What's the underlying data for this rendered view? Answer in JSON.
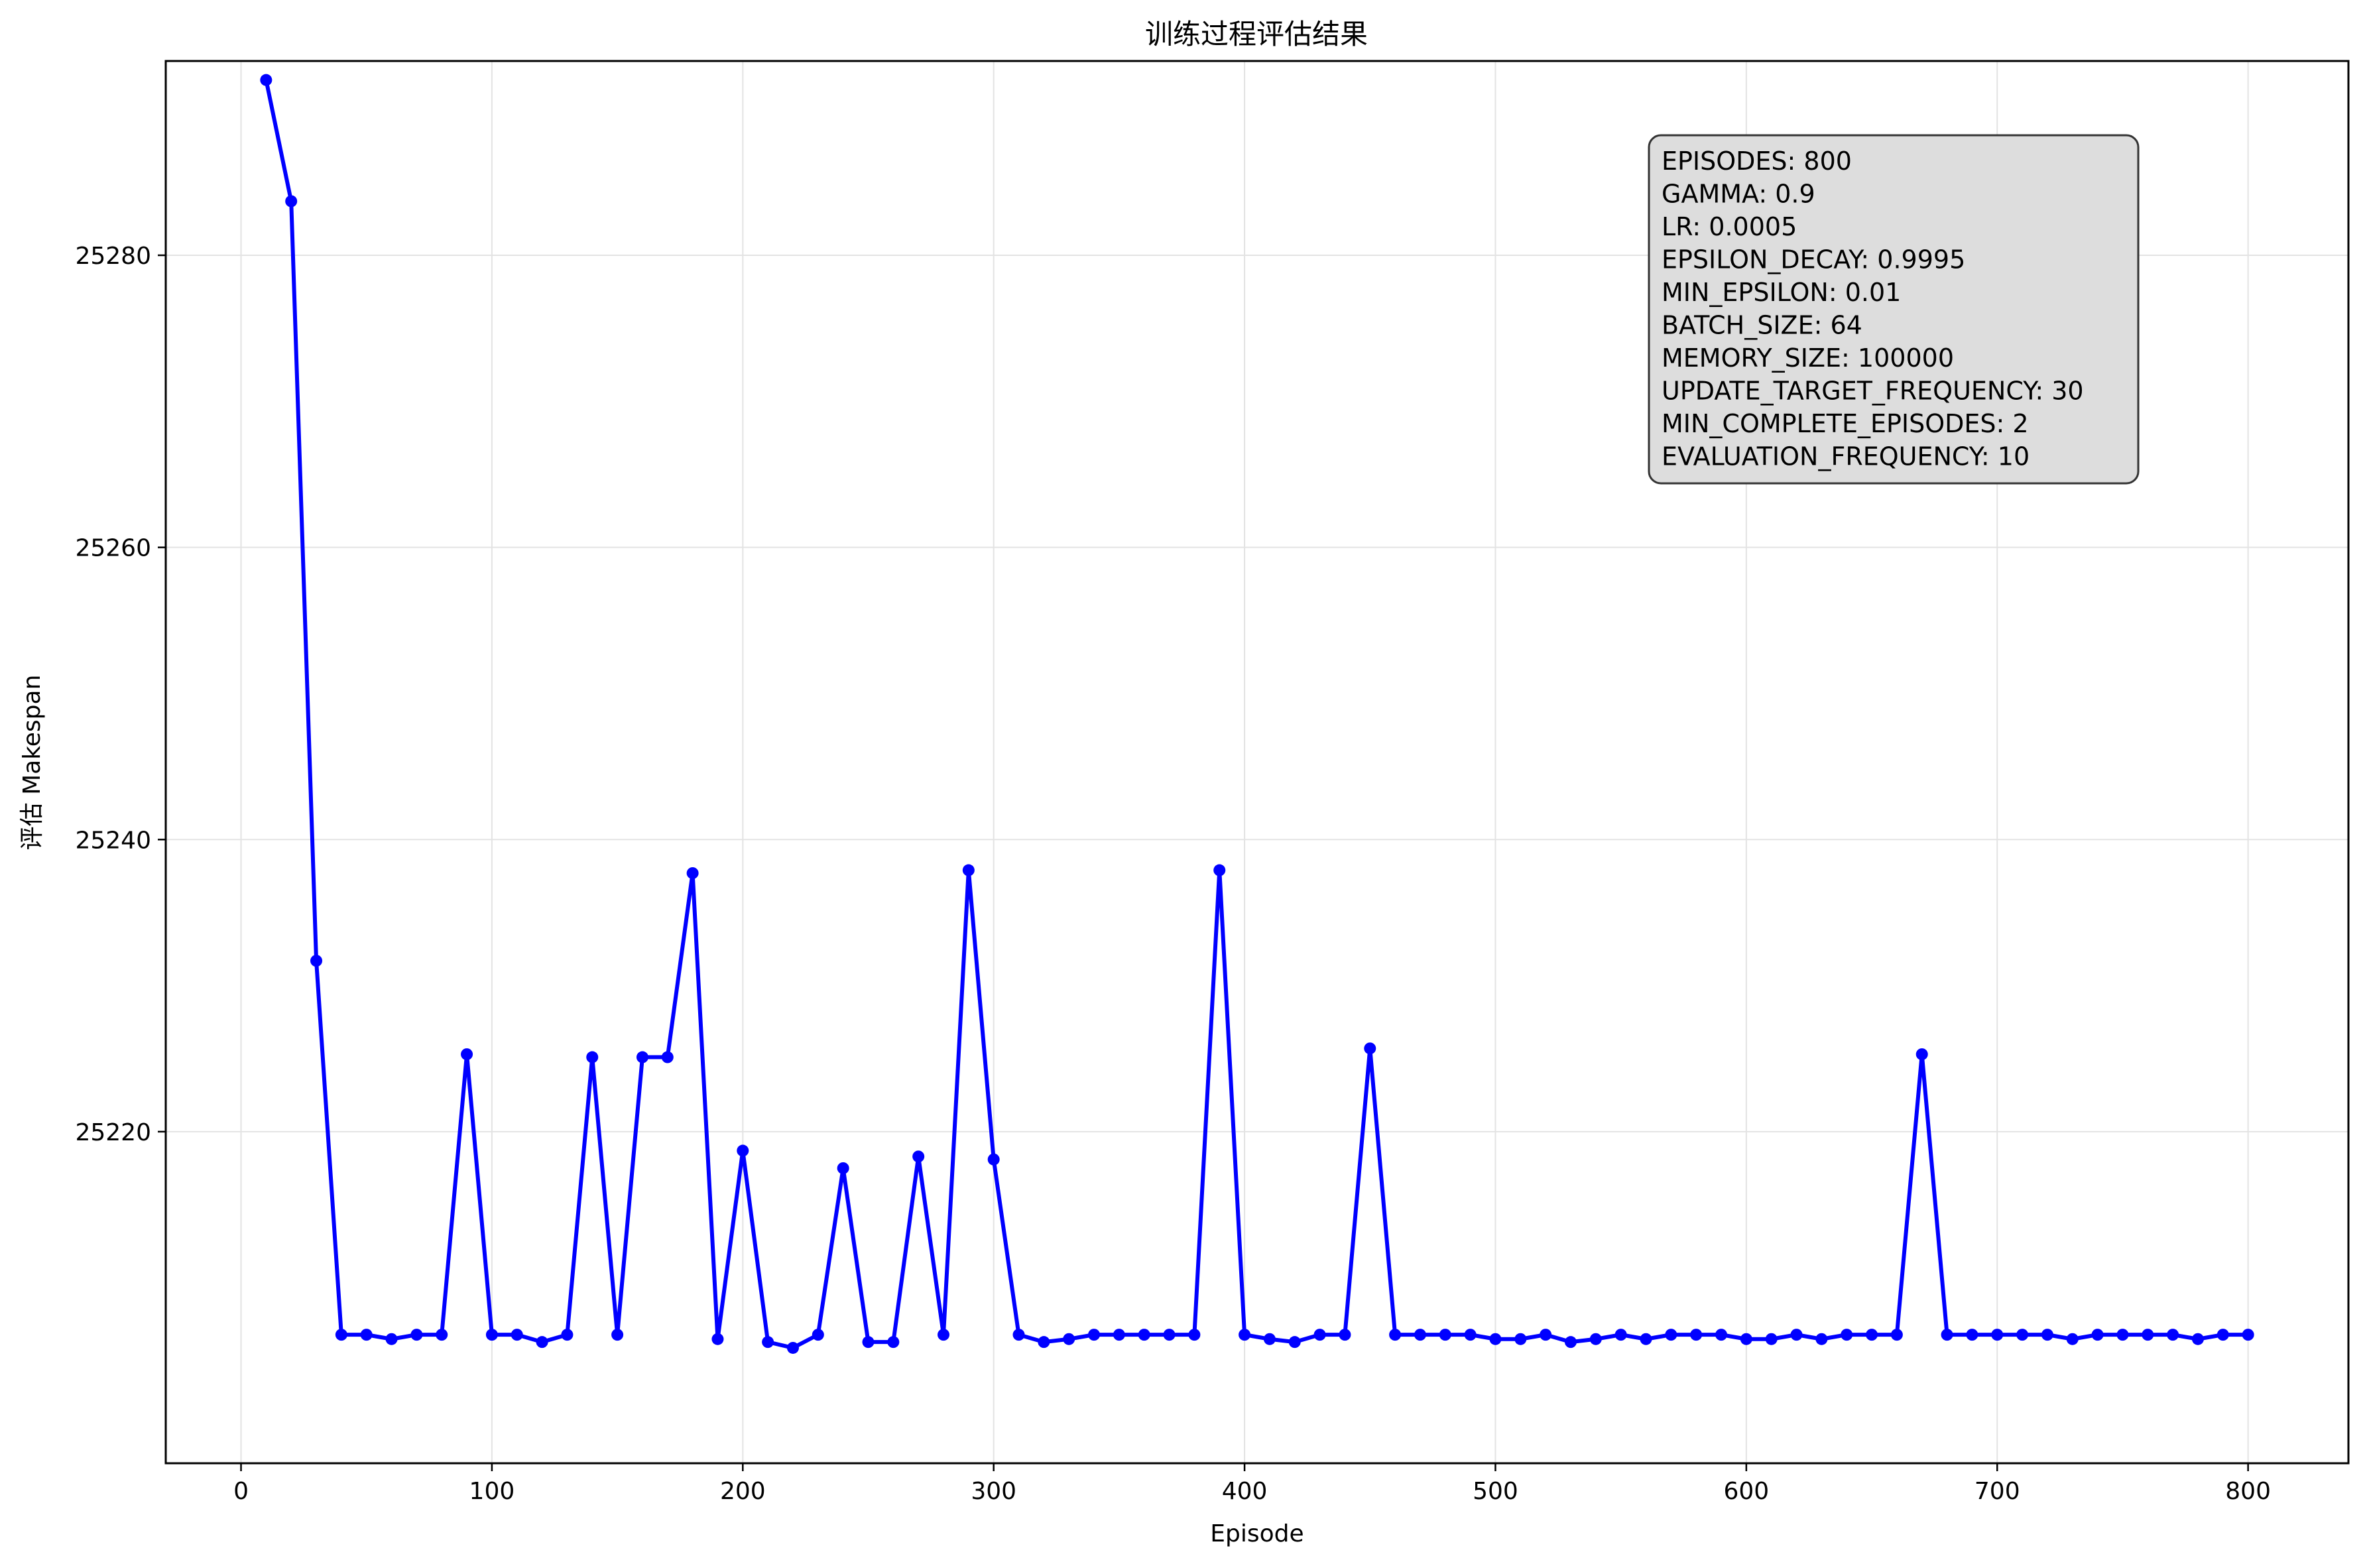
{
  "chart_data": {
    "type": "line",
    "title": "训练过程评估结果",
    "xlabel": "Episode",
    "ylabel": "评估 Makespan",
    "xlim": [
      -30,
      840
    ],
    "ylim": [
      25197.3,
      25293.3
    ],
    "xticks": [
      0,
      100,
      200,
      300,
      400,
      500,
      600,
      700,
      800
    ],
    "yticks": [
      25220,
      25240,
      25260,
      25280
    ],
    "grid": true,
    "legend": "none",
    "series": [
      {
        "color": "#0000ff",
        "marker": "circle",
        "x": [
          10,
          20,
          30,
          40,
          50,
          60,
          70,
          80,
          90,
          100,
          110,
          120,
          130,
          140,
          150,
          160,
          170,
          180,
          190,
          200,
          210,
          220,
          230,
          240,
          250,
          260,
          270,
          280,
          290,
          300,
          310,
          320,
          330,
          340,
          350,
          360,
          370,
          380,
          390,
          400,
          410,
          420,
          430,
          440,
          450,
          460,
          470,
          480,
          490,
          500,
          510,
          520,
          530,
          540,
          550,
          560,
          570,
          580,
          590,
          600,
          610,
          620,
          630,
          640,
          650,
          660,
          670,
          680,
          690,
          700,
          710,
          720,
          730,
          740,
          750,
          760,
          770,
          780,
          790,
          800
        ],
        "y": [
          25292.0,
          25283.7,
          25231.7,
          25206.1,
          25206.1,
          25205.8,
          25206.1,
          25206.1,
          25225.3,
          25206.1,
          25206.1,
          25205.6,
          25206.1,
          25225.1,
          25206.1,
          25225.1,
          25225.1,
          25237.7,
          25205.8,
          25218.7,
          25205.6,
          25205.2,
          25206.1,
          25217.5,
          25205.6,
          25205.6,
          25218.3,
          25206.1,
          25237.9,
          25218.1,
          25206.1,
          25205.6,
          25205.8,
          25206.1,
          25206.1,
          25206.1,
          25206.1,
          25206.1,
          25237.9,
          25206.1,
          25205.8,
          25205.6,
          25206.1,
          25206.1,
          25225.7,
          25206.1,
          25206.1,
          25206.1,
          25206.1,
          25205.8,
          25205.8,
          25206.1,
          25205.6,
          25205.8,
          25206.1,
          25205.8,
          25206.1,
          25206.1,
          25206.1,
          25205.8,
          25205.8,
          25206.1,
          25205.8,
          25206.1,
          25206.1,
          25206.1,
          25225.3,
          25206.1,
          25206.1,
          25206.1,
          25206.1,
          25206.1,
          25205.8,
          25206.1,
          25206.1,
          25206.1,
          25206.1,
          25205.8,
          25206.1,
          25206.1
        ]
      }
    ],
    "annotation_box": {
      "lines": [
        "EPISODES: 800",
        "GAMMA: 0.9",
        "LR: 0.0005",
        "EPSILON_DECAY: 0.9995",
        "MIN_EPSILON: 0.01",
        "BATCH_SIZE: 64",
        "MEMORY_SIZE: 100000",
        "UPDATE_TARGET_FREQUENCY: 30",
        "MIN_COMPLETE_EPISODES: 2",
        "EVALUATION_FREQUENCY: 10"
      ]
    }
  }
}
